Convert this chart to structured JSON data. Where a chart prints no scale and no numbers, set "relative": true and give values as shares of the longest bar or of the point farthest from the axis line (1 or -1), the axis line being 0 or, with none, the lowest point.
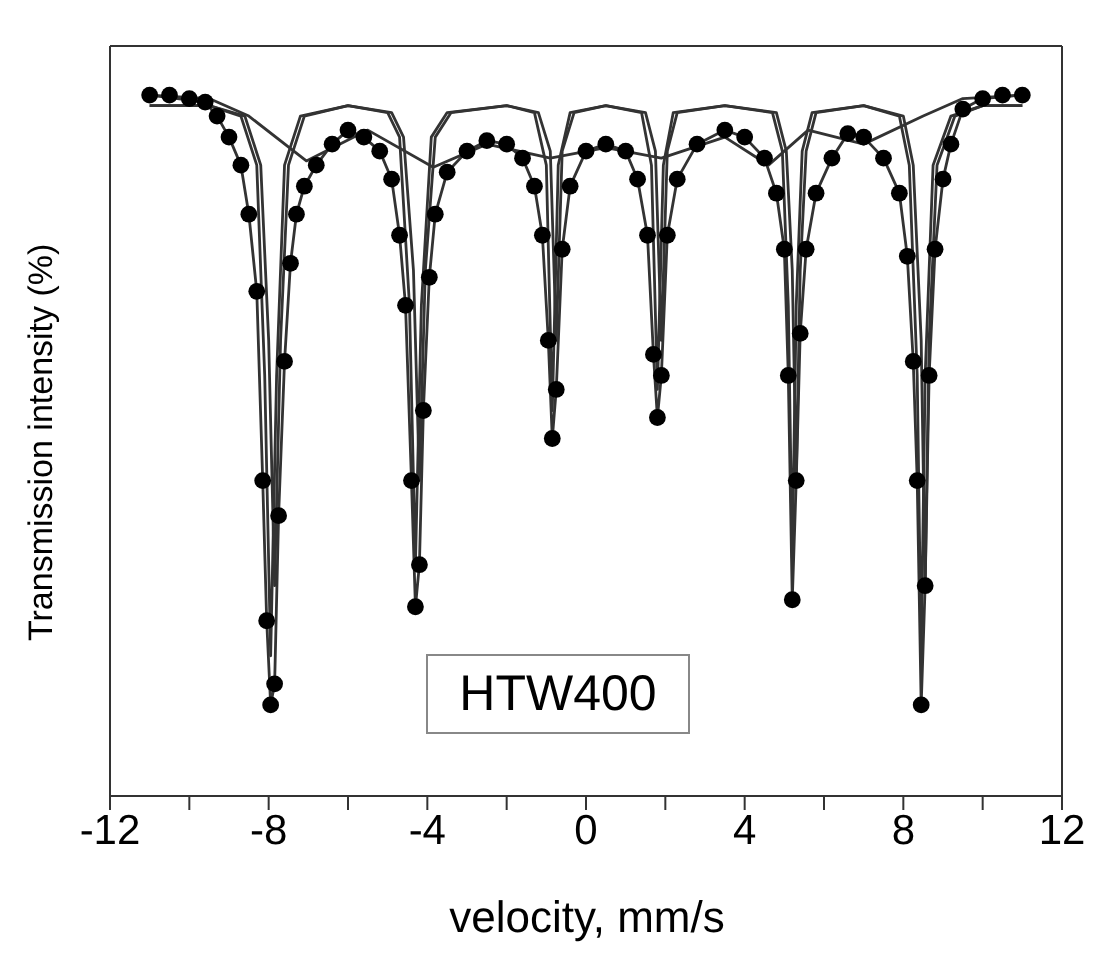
{
  "chart_data": {
    "type": "scatter",
    "relative": true,
    "xlabel": "velocity, mm/s",
    "ylabel": "Transmission intensity (%)",
    "annotations": [
      "HTW400"
    ],
    "xlim": [
      -12,
      12
    ],
    "xticks": [
      -12,
      {
        "value": -10,
        "label": null
      },
      -8,
      {
        "value": -6,
        "label": null
      },
      -4,
      {
        "value": -2,
        "label": null
      },
      0,
      {
        "value": 2,
        "label": null
      },
      4,
      {
        "value": 6,
        "label": null
      },
      8,
      {
        "value": 10,
        "label": null
      },
      12
    ],
    "tick_labels": "x",
    "series": [
      {
        "type": "line",
        "color": "#333333",
        "marker": "none",
        "x": [
          -11,
          -9.6,
          -9.3,
          -9.0,
          -8.7,
          -8.5,
          -8.3,
          -8.15,
          -8.05,
          -7.95,
          -7.85,
          -7.75,
          -7.6,
          -7.45,
          -7.3,
          -7.1,
          -6.8,
          -6.4,
          -6.0,
          -5.6,
          -5.2,
          -4.9,
          -4.7,
          -4.55,
          -4.4,
          -4.3,
          -4.2,
          -4.1,
          -3.95,
          -3.8,
          -3.5,
          -3.0,
          -2.5,
          -2.0,
          -1.6,
          -1.3,
          -1.1,
          -0.95,
          -0.85,
          -0.75,
          -0.6,
          -0.4,
          0,
          0.5,
          1.0,
          1.3,
          1.55,
          1.7,
          1.8,
          1.9,
          2.05,
          2.3,
          2.8,
          3.5,
          4.0,
          4.5,
          4.8,
          5.0,
          5.1,
          5.2,
          5.3,
          5.4,
          5.55,
          5.8,
          6.2,
          6.6,
          7.0,
          7.5,
          7.9,
          8.1,
          8.25,
          8.35,
          8.45,
          8.55,
          8.65,
          8.8,
          9.0,
          9.2,
          9.5,
          10,
          11
        ],
        "values": [
          1.0,
          0.99,
          0.97,
          0.94,
          0.9,
          0.83,
          0.72,
          0.45,
          0.25,
          0.13,
          0.16,
          0.4,
          0.62,
          0.76,
          0.83,
          0.87,
          0.9,
          0.93,
          0.95,
          0.94,
          0.92,
          0.88,
          0.8,
          0.7,
          0.45,
          0.27,
          0.33,
          0.55,
          0.74,
          0.83,
          0.89,
          0.92,
          0.935,
          0.93,
          0.91,
          0.87,
          0.8,
          0.65,
          0.51,
          0.58,
          0.78,
          0.87,
          0.92,
          0.93,
          0.92,
          0.88,
          0.8,
          0.63,
          0.54,
          0.6,
          0.8,
          0.88,
          0.93,
          0.95,
          0.94,
          0.91,
          0.86,
          0.78,
          0.6,
          0.28,
          0.45,
          0.66,
          0.78,
          0.86,
          0.91,
          0.945,
          0.94,
          0.91,
          0.86,
          0.77,
          0.62,
          0.45,
          0.13,
          0.3,
          0.6,
          0.78,
          0.88,
          0.93,
          0.98,
          0.995,
          1.0
        ]
      },
      {
        "type": "line",
        "color": "#333333",
        "marker": "none",
        "x": [
          -11,
          -9.5,
          -8.7,
          -8.3,
          -8.1,
          -7.95,
          -7.8,
          -7.6,
          -7.2,
          -6,
          -5,
          -4.7,
          -4.45,
          -4.3,
          -4.15,
          -3.9,
          -3.5,
          -2,
          -1.3,
          -1.0,
          -0.85,
          -0.7,
          -0.4,
          0.5,
          1.4,
          1.65,
          1.8,
          1.95,
          2.2,
          3.5,
          4.7,
          4.95,
          5.1,
          5.2,
          5.3,
          5.45,
          5.7,
          7,
          7.9,
          8.15,
          8.35,
          8.45,
          8.55,
          8.75,
          9.2,
          10,
          11
        ],
        "values": [
          0.985,
          0.985,
          0.97,
          0.9,
          0.6,
          0.2,
          0.6,
          0.9,
          0.97,
          0.985,
          0.975,
          0.94,
          0.7,
          0.33,
          0.7,
          0.94,
          0.975,
          0.985,
          0.975,
          0.9,
          0.55,
          0.9,
          0.975,
          0.985,
          0.975,
          0.9,
          0.58,
          0.9,
          0.975,
          0.985,
          0.975,
          0.92,
          0.7,
          0.34,
          0.7,
          0.92,
          0.975,
          0.985,
          0.97,
          0.9,
          0.6,
          0.2,
          0.6,
          0.9,
          0.97,
          0.985,
          0.985
        ]
      },
      {
        "type": "line",
        "color": "#333333",
        "marker": "none",
        "x": [
          -11,
          -9.5,
          -8.6,
          -8.2,
          -8.0,
          -7.85,
          -7.7,
          -7.5,
          -7.1,
          -6,
          -4.9,
          -4.6,
          -4.35,
          -4.2,
          -4.05,
          -3.8,
          -3.4,
          -2,
          -1.2,
          -0.9,
          -0.75,
          -0.6,
          -0.3,
          0.5,
          1.5,
          1.75,
          1.9,
          2.05,
          2.3,
          3.5,
          4.8,
          5.05,
          5.2,
          5.3,
          5.4,
          5.55,
          5.8,
          7,
          8.0,
          8.25,
          8.45,
          8.55,
          8.65,
          8.85,
          9.3,
          10,
          11
        ],
        "values": [
          0.985,
          0.985,
          0.97,
          0.9,
          0.65,
          0.3,
          0.65,
          0.9,
          0.97,
          0.985,
          0.975,
          0.94,
          0.75,
          0.45,
          0.75,
          0.94,
          0.975,
          0.985,
          0.975,
          0.92,
          0.65,
          0.92,
          0.975,
          0.985,
          0.975,
          0.92,
          0.65,
          0.92,
          0.975,
          0.985,
          0.975,
          0.92,
          0.75,
          0.45,
          0.75,
          0.92,
          0.975,
          0.985,
          0.97,
          0.9,
          0.65,
          0.3,
          0.65,
          0.9,
          0.97,
          0.985,
          0.985
        ]
      },
      {
        "type": "line",
        "color": "#333333",
        "marker": "none",
        "x": [
          -11,
          -9.5,
          -8.5,
          -7.05,
          -5.5,
          -3.85,
          -2.5,
          -0.9,
          0.5,
          1.9,
          3.5,
          4.6,
          5.6,
          7.0,
          8.5,
          9.5,
          11
        ],
        "values": [
          1.0,
          0.995,
          0.97,
          0.906,
          0.95,
          0.897,
          0.93,
          0.91,
          0.925,
          0.91,
          0.94,
          0.9,
          0.95,
          0.93,
          0.97,
          0.995,
          1.0
        ]
      },
      {
        "color": "#000000",
        "marker": "circle",
        "x": [
          -11,
          -10.5,
          -10,
          -9.6,
          -9.3,
          -9.0,
          -8.7,
          -8.5,
          -8.3,
          -8.15,
          -8.05,
          -7.95,
          -7.85,
          -7.75,
          -7.6,
          -7.45,
          -7.3,
          -7.1,
          -6.8,
          -6.4,
          -6.0,
          -5.6,
          -5.2,
          -4.9,
          -4.7,
          -4.55,
          -4.4,
          -4.3,
          -4.2,
          -4.1,
          -3.95,
          -3.8,
          -3.5,
          -3.0,
          -2.5,
          -2.0,
          -1.6,
          -1.3,
          -1.1,
          -0.95,
          -0.85,
          -0.75,
          -0.6,
          -0.4,
          0,
          0.5,
          1.0,
          1.3,
          1.55,
          1.7,
          1.8,
          1.9,
          2.05,
          2.3,
          2.8,
          3.5,
          4.0,
          4.5,
          4.8,
          5.0,
          5.1,
          5.2,
          5.3,
          5.4,
          5.55,
          5.8,
          6.2,
          6.6,
          7.0,
          7.5,
          7.9,
          8.1,
          8.25,
          8.35,
          8.45,
          8.55,
          8.65,
          8.8,
          9.0,
          9.2,
          9.5,
          10,
          10.5,
          11
        ],
        "values": [
          1.0,
          1.0,
          0.995,
          0.99,
          0.97,
          0.94,
          0.9,
          0.83,
          0.72,
          0.45,
          0.25,
          0.13,
          0.16,
          0.4,
          0.62,
          0.76,
          0.83,
          0.87,
          0.9,
          0.93,
          0.95,
          0.94,
          0.92,
          0.88,
          0.8,
          0.7,
          0.45,
          0.27,
          0.33,
          0.55,
          0.74,
          0.83,
          0.89,
          0.92,
          0.935,
          0.93,
          0.91,
          0.87,
          0.8,
          0.65,
          0.51,
          0.58,
          0.78,
          0.87,
          0.92,
          0.93,
          0.92,
          0.88,
          0.8,
          0.63,
          0.54,
          0.6,
          0.8,
          0.88,
          0.93,
          0.95,
          0.94,
          0.91,
          0.86,
          0.78,
          0.6,
          0.28,
          0.45,
          0.66,
          0.78,
          0.86,
          0.91,
          0.945,
          0.94,
          0.91,
          0.86,
          0.77,
          0.62,
          0.45,
          0.13,
          0.3,
          0.6,
          0.78,
          0.88,
          0.93,
          0.98,
          0.995,
          1.0,
          1.0
        ]
      }
    ]
  }
}
